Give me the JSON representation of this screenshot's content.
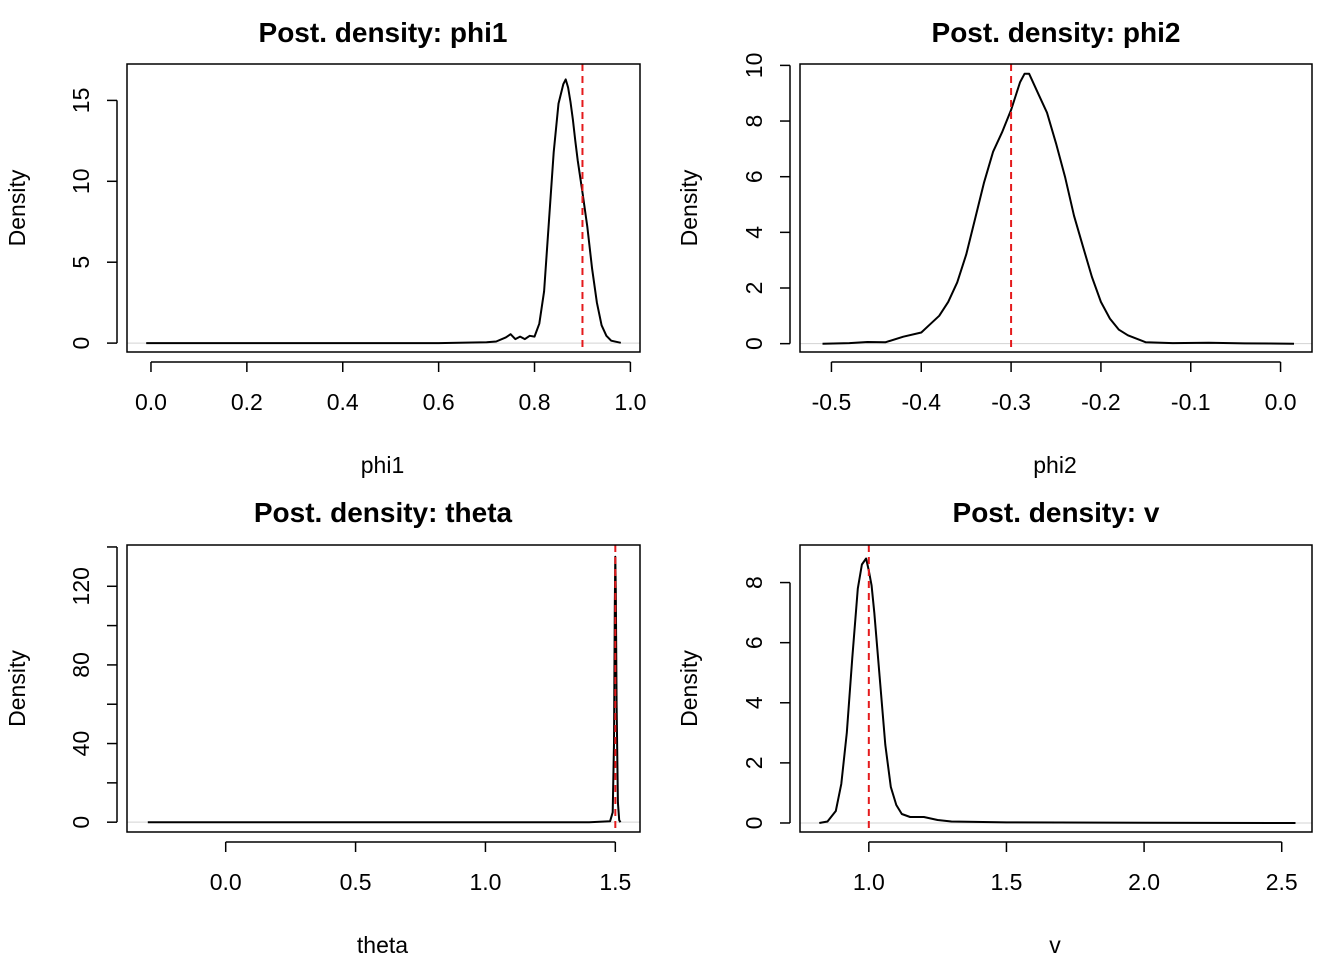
{
  "chart_data": [
    {
      "type": "line",
      "title": "Post. density: phi1",
      "xlabel": "phi1",
      "ylabel": "Density",
      "xlim": [
        -0.05,
        1.02
      ],
      "ylim": [
        -0.55,
        17.25
      ],
      "xticks": [
        0.0,
        0.2,
        0.4,
        0.6,
        0.8,
        1.0
      ],
      "xtick_labels": [
        "0.0",
        "0.2",
        "0.4",
        "0.6",
        "0.8",
        "1.0"
      ],
      "yticks": [
        0,
        5,
        10,
        15
      ],
      "ytick_labels": [
        "0",
        "5",
        "10",
        "15"
      ],
      "ref_line": 0.9,
      "ref_color": "#e41a1c",
      "series": [
        {
          "x": [
            -0.01,
            0.1,
            0.2,
            0.3,
            0.4,
            0.5,
            0.6,
            0.7,
            0.72,
            0.74,
            0.75,
            0.76,
            0.77,
            0.78,
            0.79,
            0.8,
            0.81,
            0.82,
            0.83,
            0.84,
            0.85,
            0.86,
            0.865,
            0.87,
            0.875,
            0.88,
            0.885,
            0.89,
            0.9,
            0.91,
            0.92,
            0.93,
            0.94,
            0.95,
            0.96,
            0.98
          ],
          "y": [
            0,
            0,
            0,
            0,
            0,
            0,
            0,
            0.05,
            0.1,
            0.35,
            0.55,
            0.25,
            0.4,
            0.25,
            0.45,
            0.4,
            1.2,
            3.2,
            7.5,
            11.8,
            14.8,
            16.0,
            16.3,
            15.8,
            14.9,
            13.8,
            12.5,
            11.3,
            9.3,
            7.2,
            4.6,
            2.5,
            1.1,
            0.45,
            0.15,
            0.02
          ]
        }
      ]
    },
    {
      "type": "line",
      "title": "Post. density: phi2",
      "xlabel": "phi2",
      "ylabel": "Density",
      "xlim": [
        -0.535,
        0.035
      ],
      "ylim": [
        -0.3,
        10.05
      ],
      "xticks": [
        -0.5,
        -0.4,
        -0.3,
        -0.2,
        -0.1,
        0.0
      ],
      "xtick_labels": [
        "-0.5",
        "-0.4",
        "-0.3",
        "-0.2",
        "-0.1",
        "0.0"
      ],
      "yticks": [
        0,
        2,
        4,
        6,
        8,
        10
      ],
      "ytick_labels": [
        "0",
        "2",
        "4",
        "6",
        "8",
        "10"
      ],
      "ref_line": -0.3,
      "ref_color": "#e41a1c",
      "series": [
        {
          "x": [
            -0.51,
            -0.48,
            -0.46,
            -0.44,
            -0.42,
            -0.4,
            -0.39,
            -0.38,
            -0.37,
            -0.36,
            -0.35,
            -0.34,
            -0.33,
            -0.32,
            -0.31,
            -0.3,
            -0.295,
            -0.29,
            -0.285,
            -0.28,
            -0.27,
            -0.26,
            -0.25,
            -0.24,
            -0.23,
            -0.22,
            -0.21,
            -0.2,
            -0.19,
            -0.18,
            -0.17,
            -0.15,
            -0.12,
            -0.08,
            -0.04,
            0.015
          ],
          "y": [
            0,
            0.02,
            0.06,
            0.05,
            0.25,
            0.4,
            0.7,
            1.0,
            1.5,
            2.2,
            3.2,
            4.5,
            5.8,
            6.9,
            7.6,
            8.4,
            8.9,
            9.4,
            9.7,
            9.7,
            9.0,
            8.3,
            7.2,
            6.0,
            4.6,
            3.5,
            2.4,
            1.5,
            0.9,
            0.5,
            0.3,
            0.05,
            0.02,
            0.03,
            0.01,
            0
          ]
        }
      ]
    },
    {
      "type": "line",
      "title": "Post. density: theta",
      "xlabel": "theta",
      "ylabel": "Density",
      "xlim": [
        -0.38,
        1.595
      ],
      "ylim": [
        -5.0,
        141.0
      ],
      "xticks": [
        0.0,
        0.5,
        1.0,
        1.5
      ],
      "xtick_labels": [
        "0.0",
        "0.5",
        "1.0",
        "1.5"
      ],
      "yticks": [
        0,
        20,
        40,
        60,
        80,
        100,
        120,
        140
      ],
      "ytick_labels": [
        "0",
        "",
        "40",
        "",
        "80",
        "",
        "120",
        ""
      ],
      "ref_line": 1.5,
      "ref_color": "#e41a1c",
      "series": [
        {
          "x": [
            -0.3,
            0.0,
            0.5,
            1.0,
            1.4,
            1.48,
            1.49,
            1.495,
            1.498,
            1.5,
            1.502,
            1.505,
            1.51,
            1.515,
            1.52
          ],
          "y": [
            0,
            0,
            0,
            0,
            0,
            0.5,
            5,
            40,
            110,
            135,
            118,
            60,
            10,
            1,
            0
          ]
        }
      ]
    },
    {
      "type": "line",
      "title": "Post. density: v",
      "xlabel": "v",
      "ylabel": "Density",
      "xlim": [
        0.75,
        2.61
      ],
      "ylim": [
        -0.3,
        9.25
      ],
      "xticks": [
        1.0,
        1.5,
        2.0,
        2.5
      ],
      "xtick_labels": [
        "1.0",
        "1.5",
        "2.0",
        "2.5"
      ],
      "yticks": [
        0,
        2,
        4,
        6,
        8
      ],
      "ytick_labels": [
        "0",
        "2",
        "4",
        "6",
        "8"
      ],
      "ref_line": 1.0,
      "ref_color": "#e41a1c",
      "series": [
        {
          "x": [
            0.82,
            0.85,
            0.88,
            0.9,
            0.92,
            0.94,
            0.96,
            0.975,
            0.99,
            1.0,
            1.01,
            1.02,
            1.04,
            1.06,
            1.08,
            1.1,
            1.12,
            1.15,
            1.2,
            1.25,
            1.3,
            1.5,
            2.0,
            2.55
          ],
          "y": [
            0,
            0.05,
            0.4,
            1.3,
            3.0,
            5.5,
            7.8,
            8.6,
            8.8,
            8.4,
            7.9,
            7.0,
            4.8,
            2.6,
            1.2,
            0.6,
            0.3,
            0.2,
            0.2,
            0.1,
            0.05,
            0.02,
            0.01,
            0
          ]
        }
      ]
    }
  ]
}
